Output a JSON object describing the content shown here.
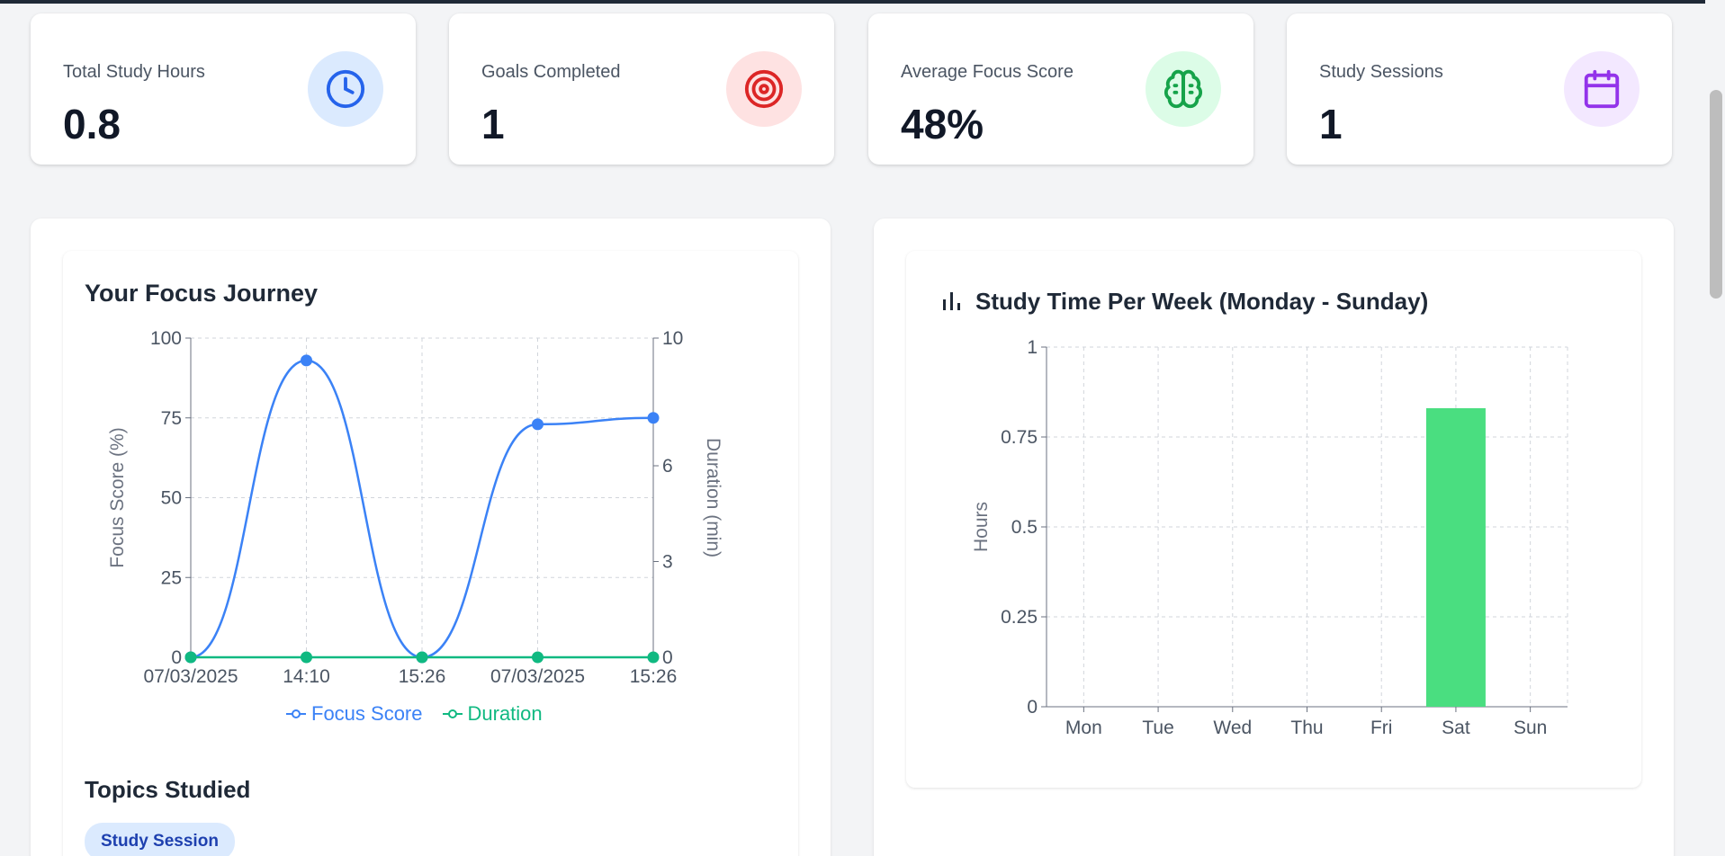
{
  "stats": [
    {
      "label": "Total Study Hours",
      "value": "0.8",
      "icon": "clock-icon",
      "bg": "#dbeafe",
      "color": "#2563eb"
    },
    {
      "label": "Goals Completed",
      "value": "1",
      "icon": "target-icon",
      "bg": "#fee2e2",
      "color": "#dc2626"
    },
    {
      "label": "Average Focus Score",
      "value": "48%",
      "icon": "brain-icon",
      "bg": "#dcfce7",
      "color": "#16a34a"
    },
    {
      "label": "Study Sessions",
      "value": "1",
      "icon": "calendar-icon",
      "bg": "#f3e8ff",
      "color": "#9333ea"
    }
  ],
  "focus_journey": {
    "title": "Your Focus Journey"
  },
  "topics": {
    "title": "Topics Studied",
    "items": [
      "Study Session"
    ]
  },
  "weekly": {
    "title": "Study Time Per Week (Monday - Sunday)",
    "icon": "bar-chart-icon"
  },
  "chart_data": [
    {
      "type": "line",
      "title": "Your Focus Journey",
      "categories": [
        "07/03/2025",
        "14:10",
        "15:26",
        "07/03/2025",
        "15:26"
      ],
      "ylabel": "Focus Score (%)",
      "y2label": "Duration (min)",
      "ylim": [
        0,
        100
      ],
      "y_ticks": [
        0,
        25,
        50,
        75,
        100
      ],
      "y2lim": [
        0,
        10
      ],
      "y2_ticks": [
        0,
        3,
        6,
        10
      ],
      "grid": true,
      "legend": "bottom",
      "series": [
        {
          "name": "Focus Score",
          "axis": "left",
          "color": "#3b82f6",
          "values": [
            0,
            93,
            0,
            73,
            75
          ]
        },
        {
          "name": "Duration",
          "axis": "right",
          "color": "#10b981",
          "values": [
            0,
            0,
            0,
            0,
            0
          ]
        }
      ]
    },
    {
      "type": "bar",
      "title": "Study Time Per Week (Monday - Sunday)",
      "categories": [
        "Mon",
        "Tue",
        "Wed",
        "Thu",
        "Fri",
        "Sat",
        "Sun"
      ],
      "values": [
        0,
        0,
        0,
        0,
        0,
        0.83,
        0
      ],
      "ylabel": "Hours",
      "xlabel": "",
      "ylim": [
        0,
        1
      ],
      "y_ticks": [
        0,
        0.25,
        0.5,
        0.75,
        1
      ],
      "y_tick_labels": [
        "0",
        "0.25",
        "0.5",
        "0.75",
        "1"
      ],
      "grid": true,
      "color": "#4ade80"
    }
  ]
}
